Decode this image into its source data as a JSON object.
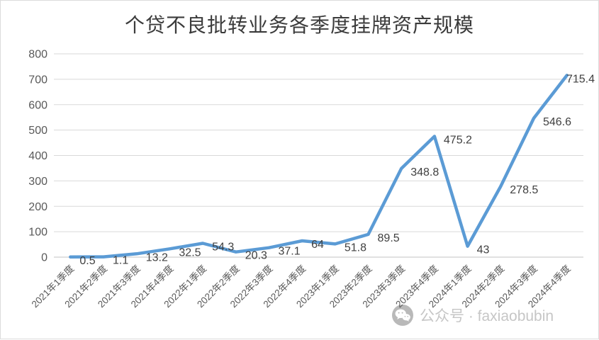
{
  "chart_data": {
    "type": "line",
    "title": "个贷不良批转业务各季度挂牌资产规模",
    "categories": [
      "2021年1季度",
      "2021年2季度",
      "2021年3季度",
      "2021年4季度",
      "2022年1季度",
      "2022年2季度",
      "2022年3季度",
      "2022年4季度",
      "2023年1季度",
      "2023年2季度",
      "2023年3季度",
      "2023年4季度",
      "2024年1季度",
      "2024年2季度",
      "2024年3季度",
      "2024年4季度"
    ],
    "values": [
      0.5,
      1.1,
      13.2,
      32.5,
      54.3,
      20.3,
      37.1,
      64,
      51.8,
      89.5,
      348.8,
      475.2,
      43,
      278.5,
      546.6,
      715.4
    ],
    "xlabel": "",
    "ylabel": "",
    "ylim": [
      0,
      800
    ],
    "ytick_step": 100,
    "grid": true,
    "legend_position": "none",
    "data_labels": true,
    "colors": {
      "line": "#5b9bd5",
      "gridline": "#d9d9d9",
      "zero_line": "#c3c3c3",
      "data_label": "#404040",
      "axis_tick_label": "#595959",
      "title": "#3b3b3b"
    }
  },
  "watermark": {
    "icon": "wechat-icon",
    "text": "公众号 · faxiaobubin",
    "color": "#c6c6c6"
  }
}
